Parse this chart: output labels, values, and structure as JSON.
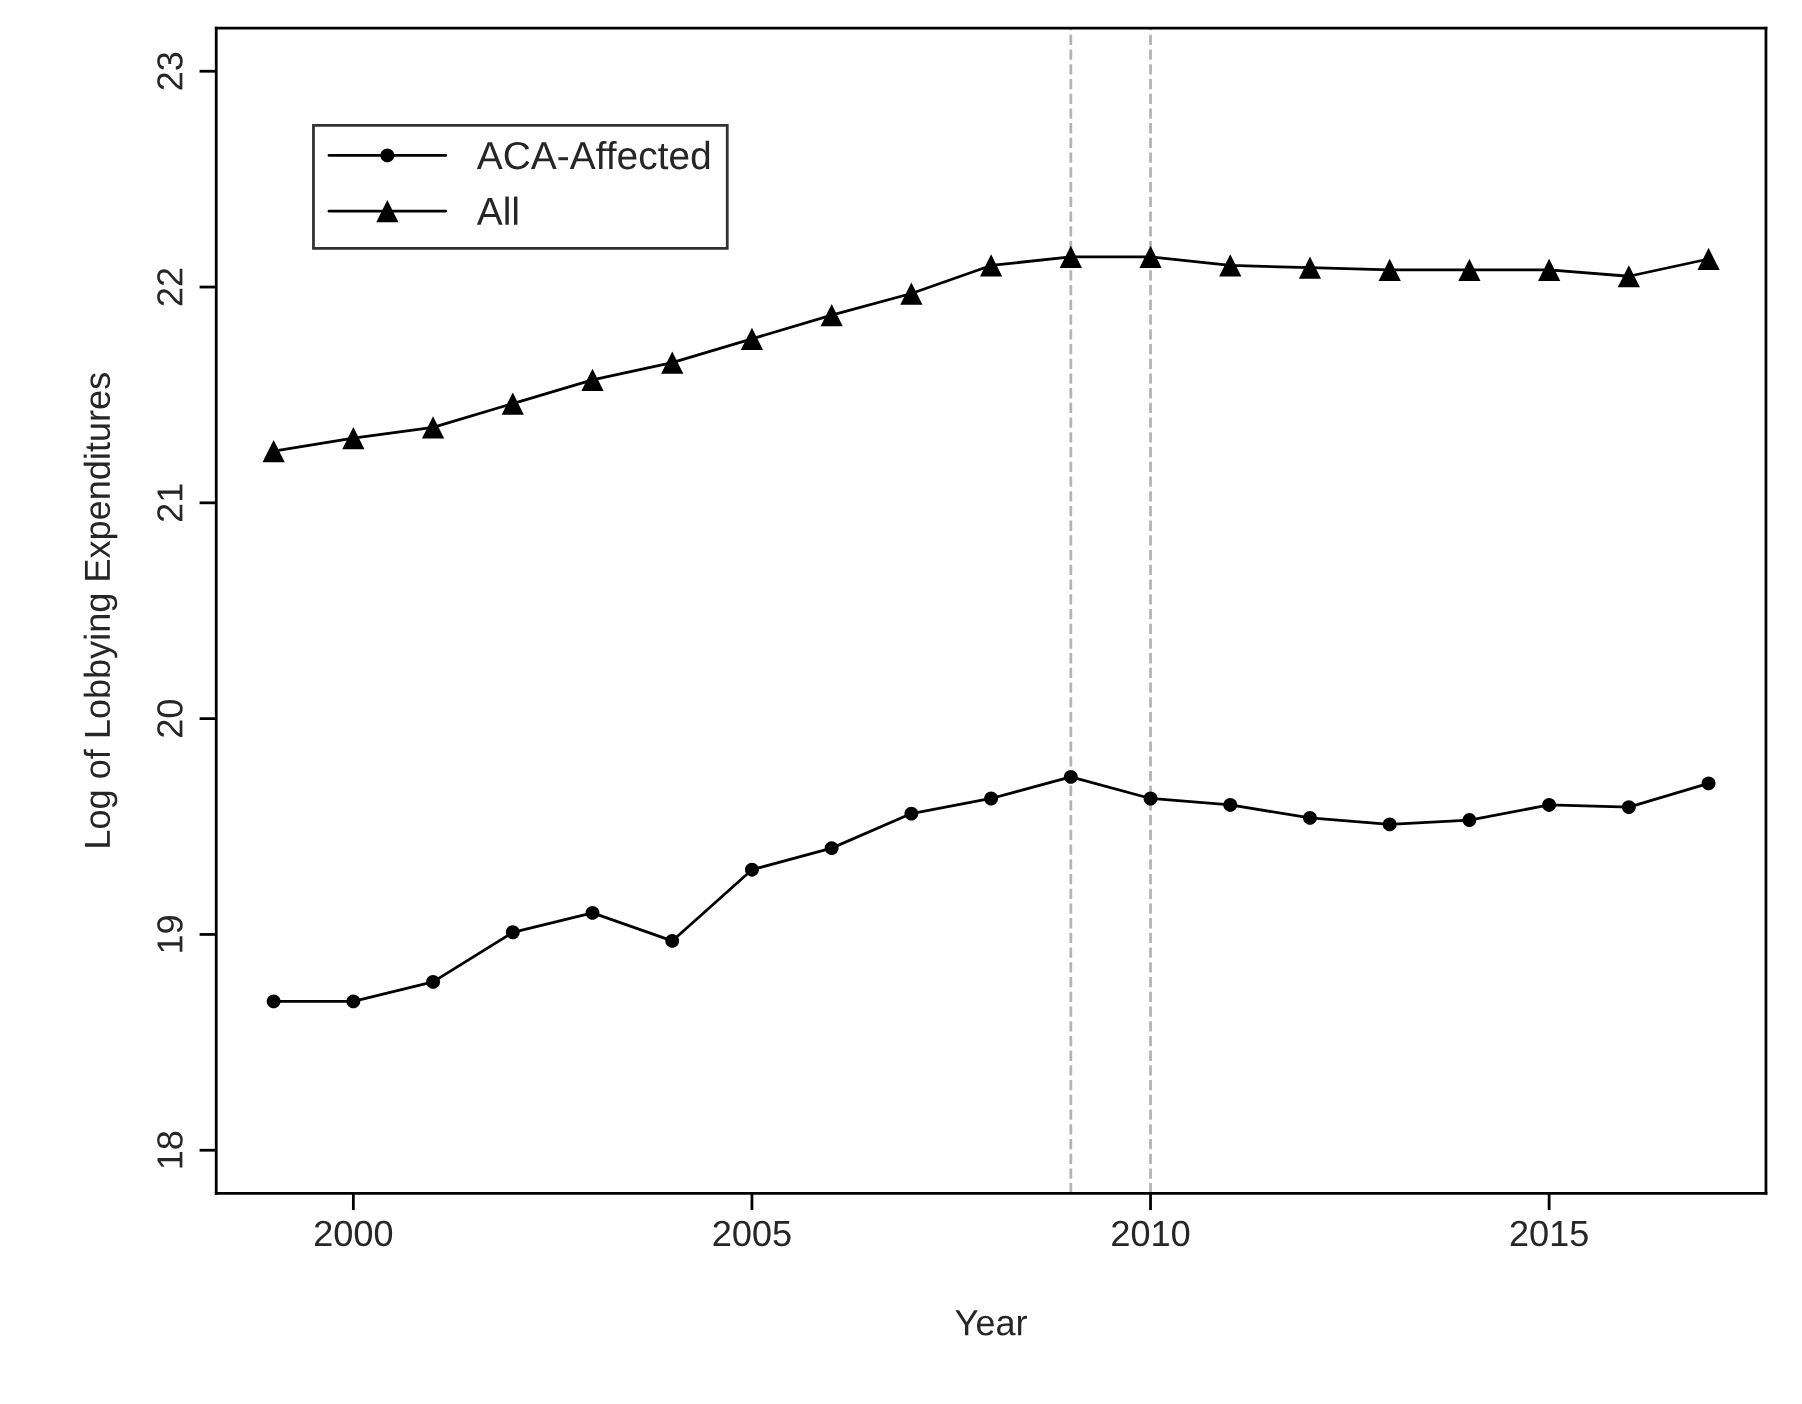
{
  "chart_data": {
    "type": "line",
    "xlabel": "Year",
    "ylabel": "Log of Lobbying Expenditures",
    "x": [
      1999,
      2000,
      2001,
      2002,
      2003,
      2004,
      2005,
      2006,
      2007,
      2008,
      2009,
      2010,
      2011,
      2012,
      2013,
      2014,
      2015,
      2016,
      2017
    ],
    "series": [
      {
        "name": "ACA-Affected",
        "color": "#000000",
        "marker": "circle",
        "values": [
          18.69,
          18.69,
          18.78,
          19.01,
          19.1,
          18.97,
          19.3,
          19.4,
          19.56,
          19.63,
          19.73,
          19.63,
          19.6,
          19.54,
          19.51,
          19.53,
          19.6,
          19.59,
          19.7
        ]
      },
      {
        "name": "All",
        "color": "#000000",
        "marker": "triangle",
        "values": [
          21.24,
          21.3,
          21.35,
          21.46,
          21.57,
          21.65,
          21.76,
          21.87,
          21.97,
          22.1,
          22.14,
          22.14,
          22.1,
          22.09,
          22.08,
          22.08,
          22.08,
          22.05,
          22.13
        ]
      }
    ],
    "xlim": [
      1998.28,
      2017.72
    ],
    "ylim": [
      17.8,
      23.2
    ],
    "xticks": [
      2000,
      2005,
      2010,
      2015
    ],
    "yticks": [
      18,
      19,
      20,
      21,
      22,
      23
    ],
    "ref_lines": [
      {
        "axis": "x",
        "value": 2009,
        "color": "#b4b4b4",
        "line_style": "dashed"
      },
      {
        "axis": "x",
        "value": 2010,
        "color": "#b4b4b4",
        "line_style": "dashed"
      }
    ],
    "grid": false,
    "legend": "top left"
  }
}
